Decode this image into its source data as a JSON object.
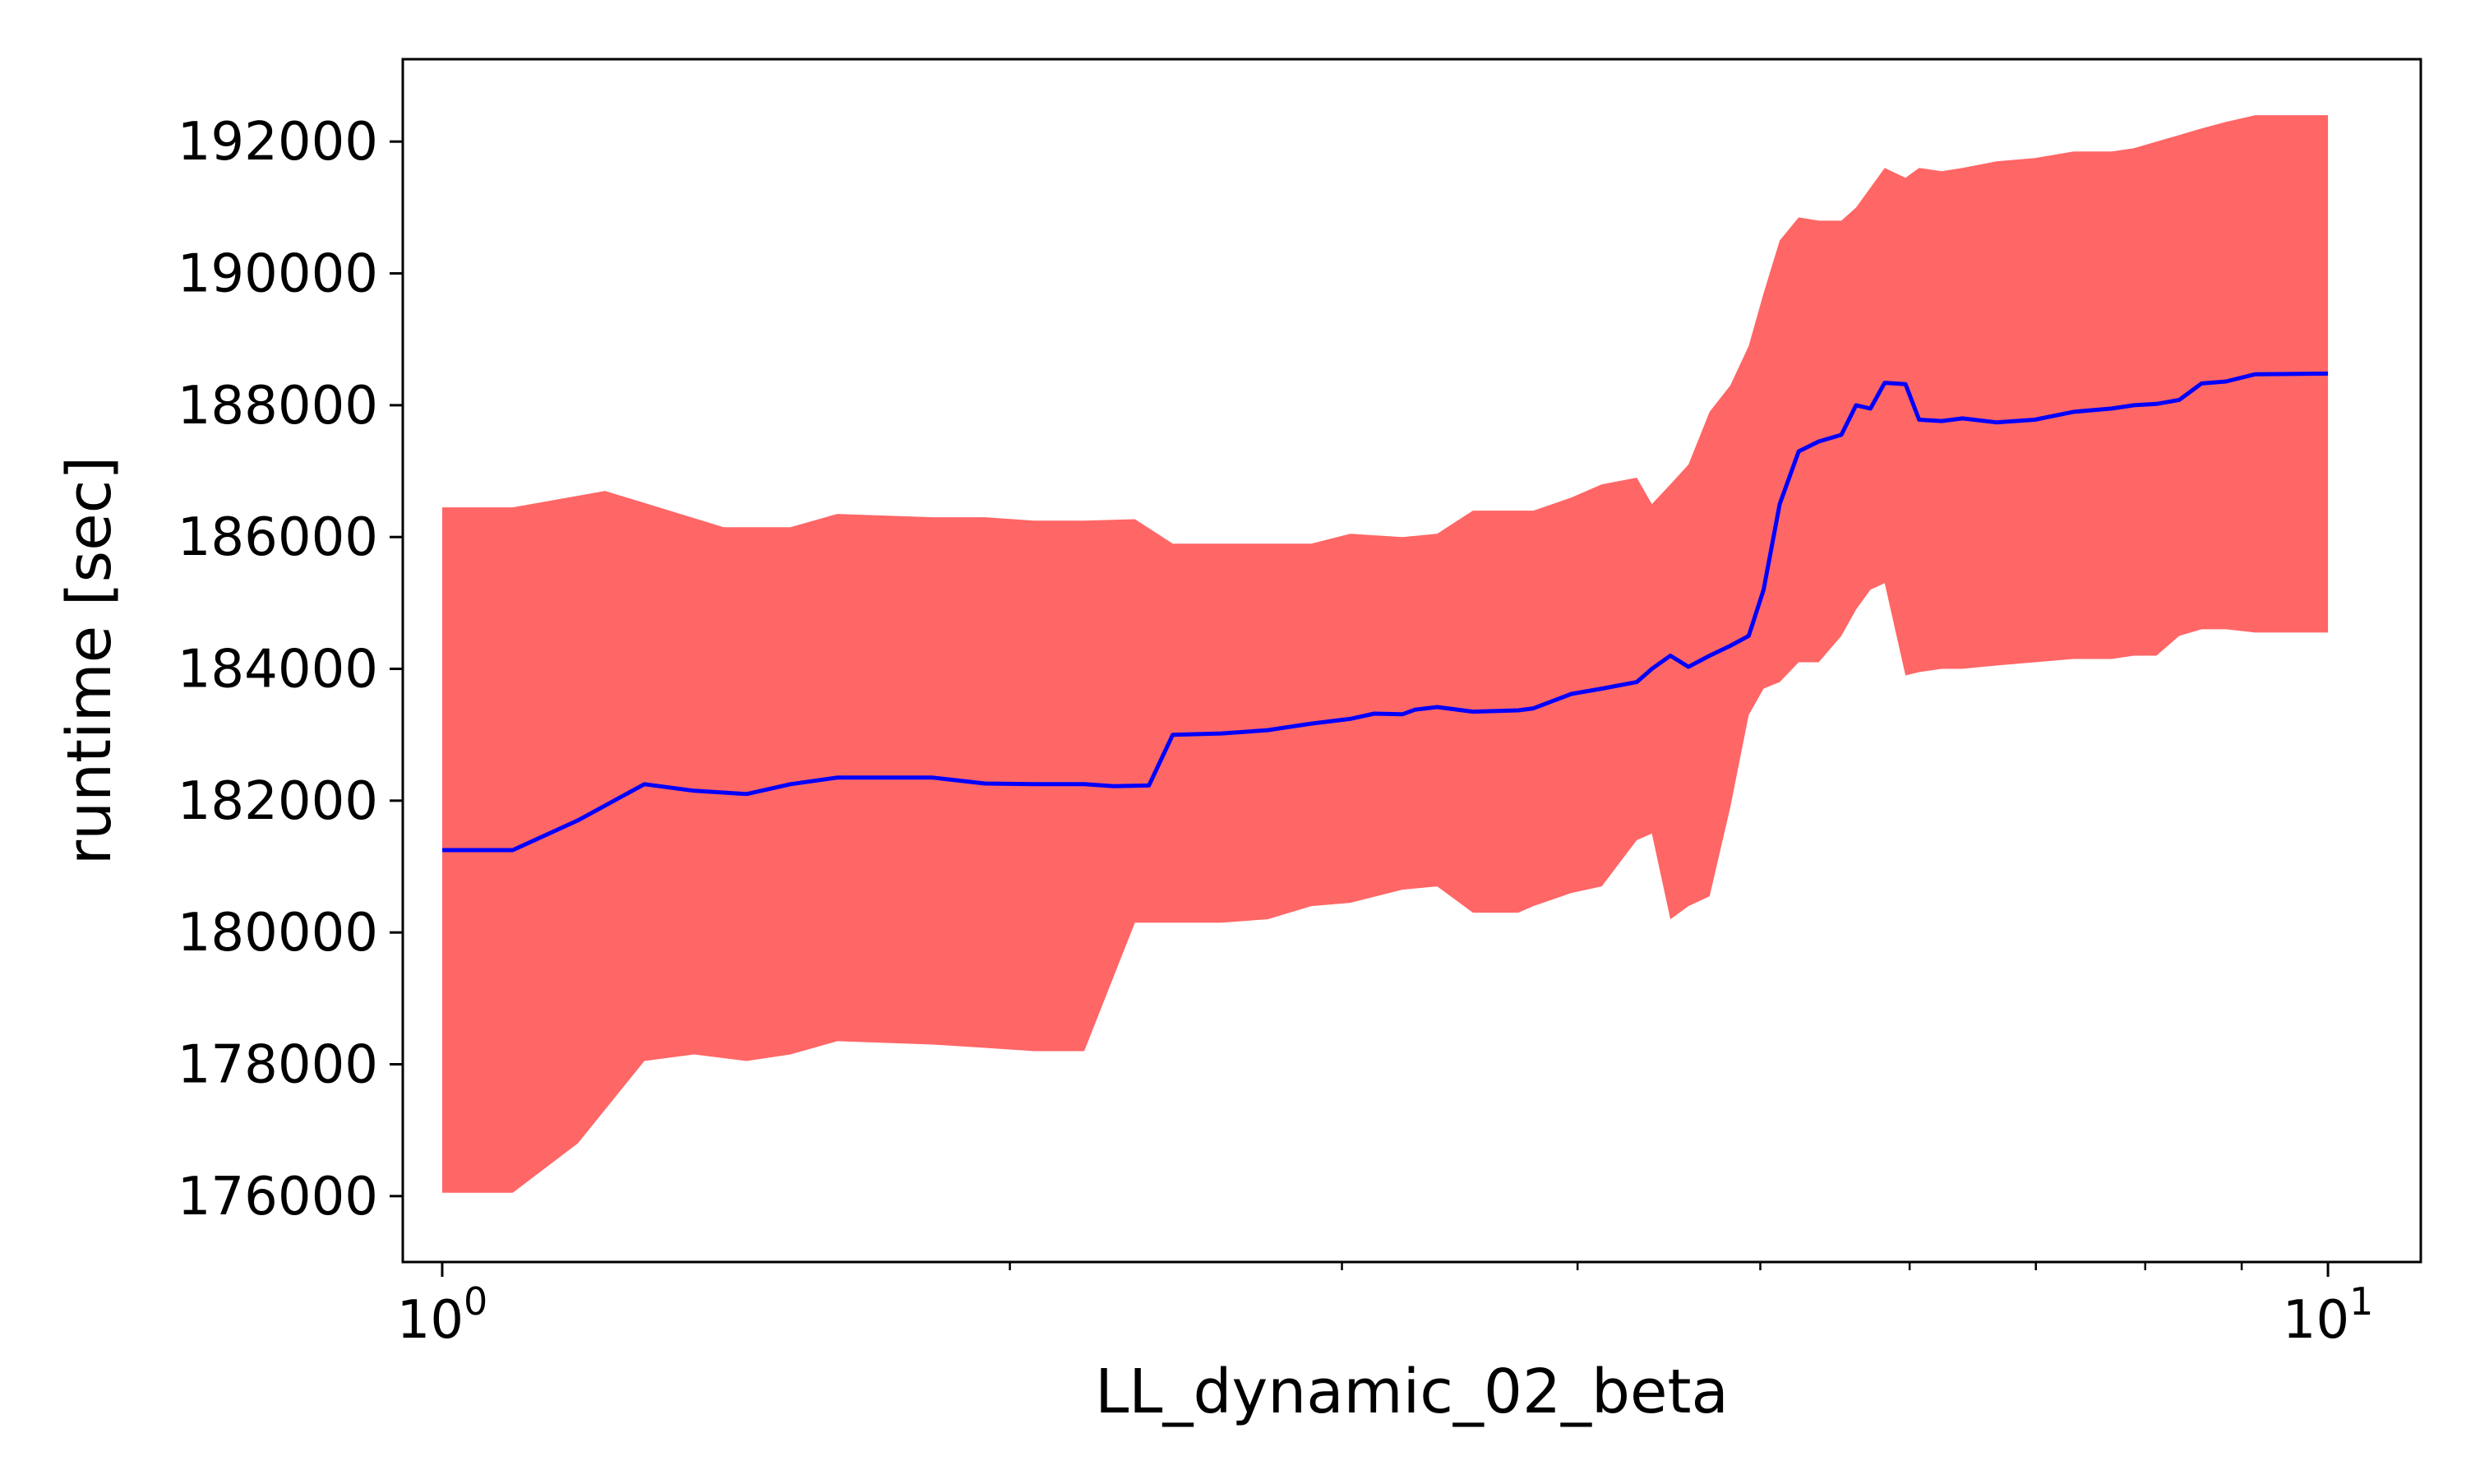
{
  "chart_data": {
    "type": "area",
    "xlabel": "LL_dynamic_02_beta",
    "ylabel": "runtime [sec]",
    "x_scale": "log",
    "xlim": [
      0.953,
      11.2
    ],
    "ylim": [
      175000,
      193250
    ],
    "grid": false,
    "legend": "none",
    "x_ticks": [
      {
        "value": 1,
        "base": "10",
        "exp": "0"
      },
      {
        "value": 10,
        "base": "10",
        "exp": "1"
      }
    ],
    "y_ticks": [
      176000,
      178000,
      180000,
      182000,
      184000,
      186000,
      188000,
      190000,
      192000
    ],
    "y_tick_labels": [
      "176000",
      "178000",
      "180000",
      "182000",
      "184000",
      "186000",
      "188000",
      "190000",
      "192000"
    ],
    "colors": {
      "mean_line": "#0000ff",
      "band": "#ff6666"
    },
    "series": [
      {
        "role": "mean",
        "x": [
          1.0,
          1.09,
          1.18,
          1.28,
          1.36,
          1.45,
          1.53,
          1.62,
          1.82,
          1.94,
          2.06,
          2.19,
          2.27,
          2.37,
          2.44,
          2.59,
          2.74,
          2.89,
          3.03,
          3.12,
          3.23,
          3.28,
          3.37,
          3.52,
          3.72,
          3.79,
          3.97,
          4.12,
          4.3,
          4.38,
          4.48,
          4.58,
          4.7,
          4.82,
          4.93,
          5.02,
          5.12,
          5.24,
          5.37,
          5.52,
          5.62,
          5.72,
          5.82,
          5.97,
          6.07,
          6.24,
          6.4,
          6.67,
          6.99,
          7.33,
          7.68,
          7.89,
          8.11,
          8.34,
          8.57,
          8.83,
          9.15,
          10.0
        ],
        "y": [
          181250,
          181250,
          181700,
          182250,
          182150,
          182100,
          182250,
          182350,
          182350,
          182260,
          182250,
          182250,
          182220,
          182230,
          183000,
          183020,
          183070,
          183170,
          183240,
          183320,
          183310,
          183380,
          183420,
          183350,
          183370,
          183400,
          183620,
          183700,
          183800,
          184000,
          184200,
          184030,
          184200,
          184350,
          184500,
          185200,
          186500,
          187300,
          187450,
          187550,
          188000,
          187950,
          188340,
          188320,
          187780,
          187760,
          187800,
          187740,
          187780,
          187900,
          187950,
          188000,
          188020,
          188080,
          188330,
          188360,
          188470,
          188480
        ]
      },
      {
        "role": "upper",
        "x": [
          1.0,
          1.09,
          1.22,
          1.41,
          1.53,
          1.62,
          1.82,
          1.94,
          2.06,
          2.19,
          2.33,
          2.44,
          2.59,
          2.74,
          2.89,
          3.03,
          3.23,
          3.37,
          3.52,
          3.72,
          3.79,
          3.97,
          4.12,
          4.3,
          4.38,
          4.48,
          4.58,
          4.7,
          4.82,
          4.93,
          5.02,
          5.12,
          5.24,
          5.37,
          5.52,
          5.62,
          5.72,
          5.82,
          5.97,
          6.07,
          6.24,
          6.4,
          6.67,
          6.99,
          7.33,
          7.68,
          7.89,
          8.11,
          8.34,
          8.57,
          8.83,
          9.15,
          10.0
        ],
        "y": [
          186450,
          186450,
          186700,
          186150,
          186150,
          186350,
          186300,
          186300,
          186250,
          186250,
          186270,
          185900,
          185900,
          185900,
          185900,
          186050,
          186000,
          186050,
          186400,
          186400,
          186400,
          186600,
          186800,
          186900,
          186500,
          186800,
          187100,
          187900,
          188300,
          188900,
          189700,
          190500,
          190850,
          190800,
          190800,
          191000,
          191300,
          191600,
          191450,
          191600,
          191550,
          191600,
          191700,
          191750,
          191850,
          191850,
          191900,
          192000,
          192100,
          192200,
          192300,
          192400,
          192400
        ]
      },
      {
        "role": "lower",
        "x": [
          1.0,
          1.09,
          1.18,
          1.28,
          1.36,
          1.45,
          1.53,
          1.62,
          1.82,
          1.94,
          2.06,
          2.19,
          2.33,
          2.44,
          2.59,
          2.74,
          2.89,
          3.03,
          3.23,
          3.37,
          3.52,
          3.72,
          3.79,
          3.97,
          4.12,
          4.3,
          4.38,
          4.48,
          4.58,
          4.7,
          4.82,
          4.93,
          5.02,
          5.12,
          5.24,
          5.37,
          5.52,
          5.62,
          5.72,
          5.82,
          5.97,
          6.07,
          6.24,
          6.4,
          6.67,
          6.99,
          7.33,
          7.68,
          7.89,
          8.11,
          8.34,
          8.57,
          8.83,
          9.15,
          10.0
        ],
        "y": [
          176050,
          176050,
          176800,
          178050,
          178150,
          178050,
          178150,
          178350,
          178300,
          178250,
          178200,
          178200,
          180150,
          180150,
          180150,
          180200,
          180400,
          180450,
          180650,
          180700,
          180300,
          180300,
          180400,
          180600,
          180700,
          181400,
          181500,
          180200,
          180400,
          180550,
          181900,
          183300,
          183700,
          183800,
          184100,
          184100,
          184500,
          184900,
          185200,
          185300,
          183900,
          183950,
          184000,
          184000,
          184050,
          184100,
          184150,
          184150,
          184200,
          184200,
          184500,
          184600,
          184600,
          184550,
          184550
        ]
      }
    ]
  }
}
